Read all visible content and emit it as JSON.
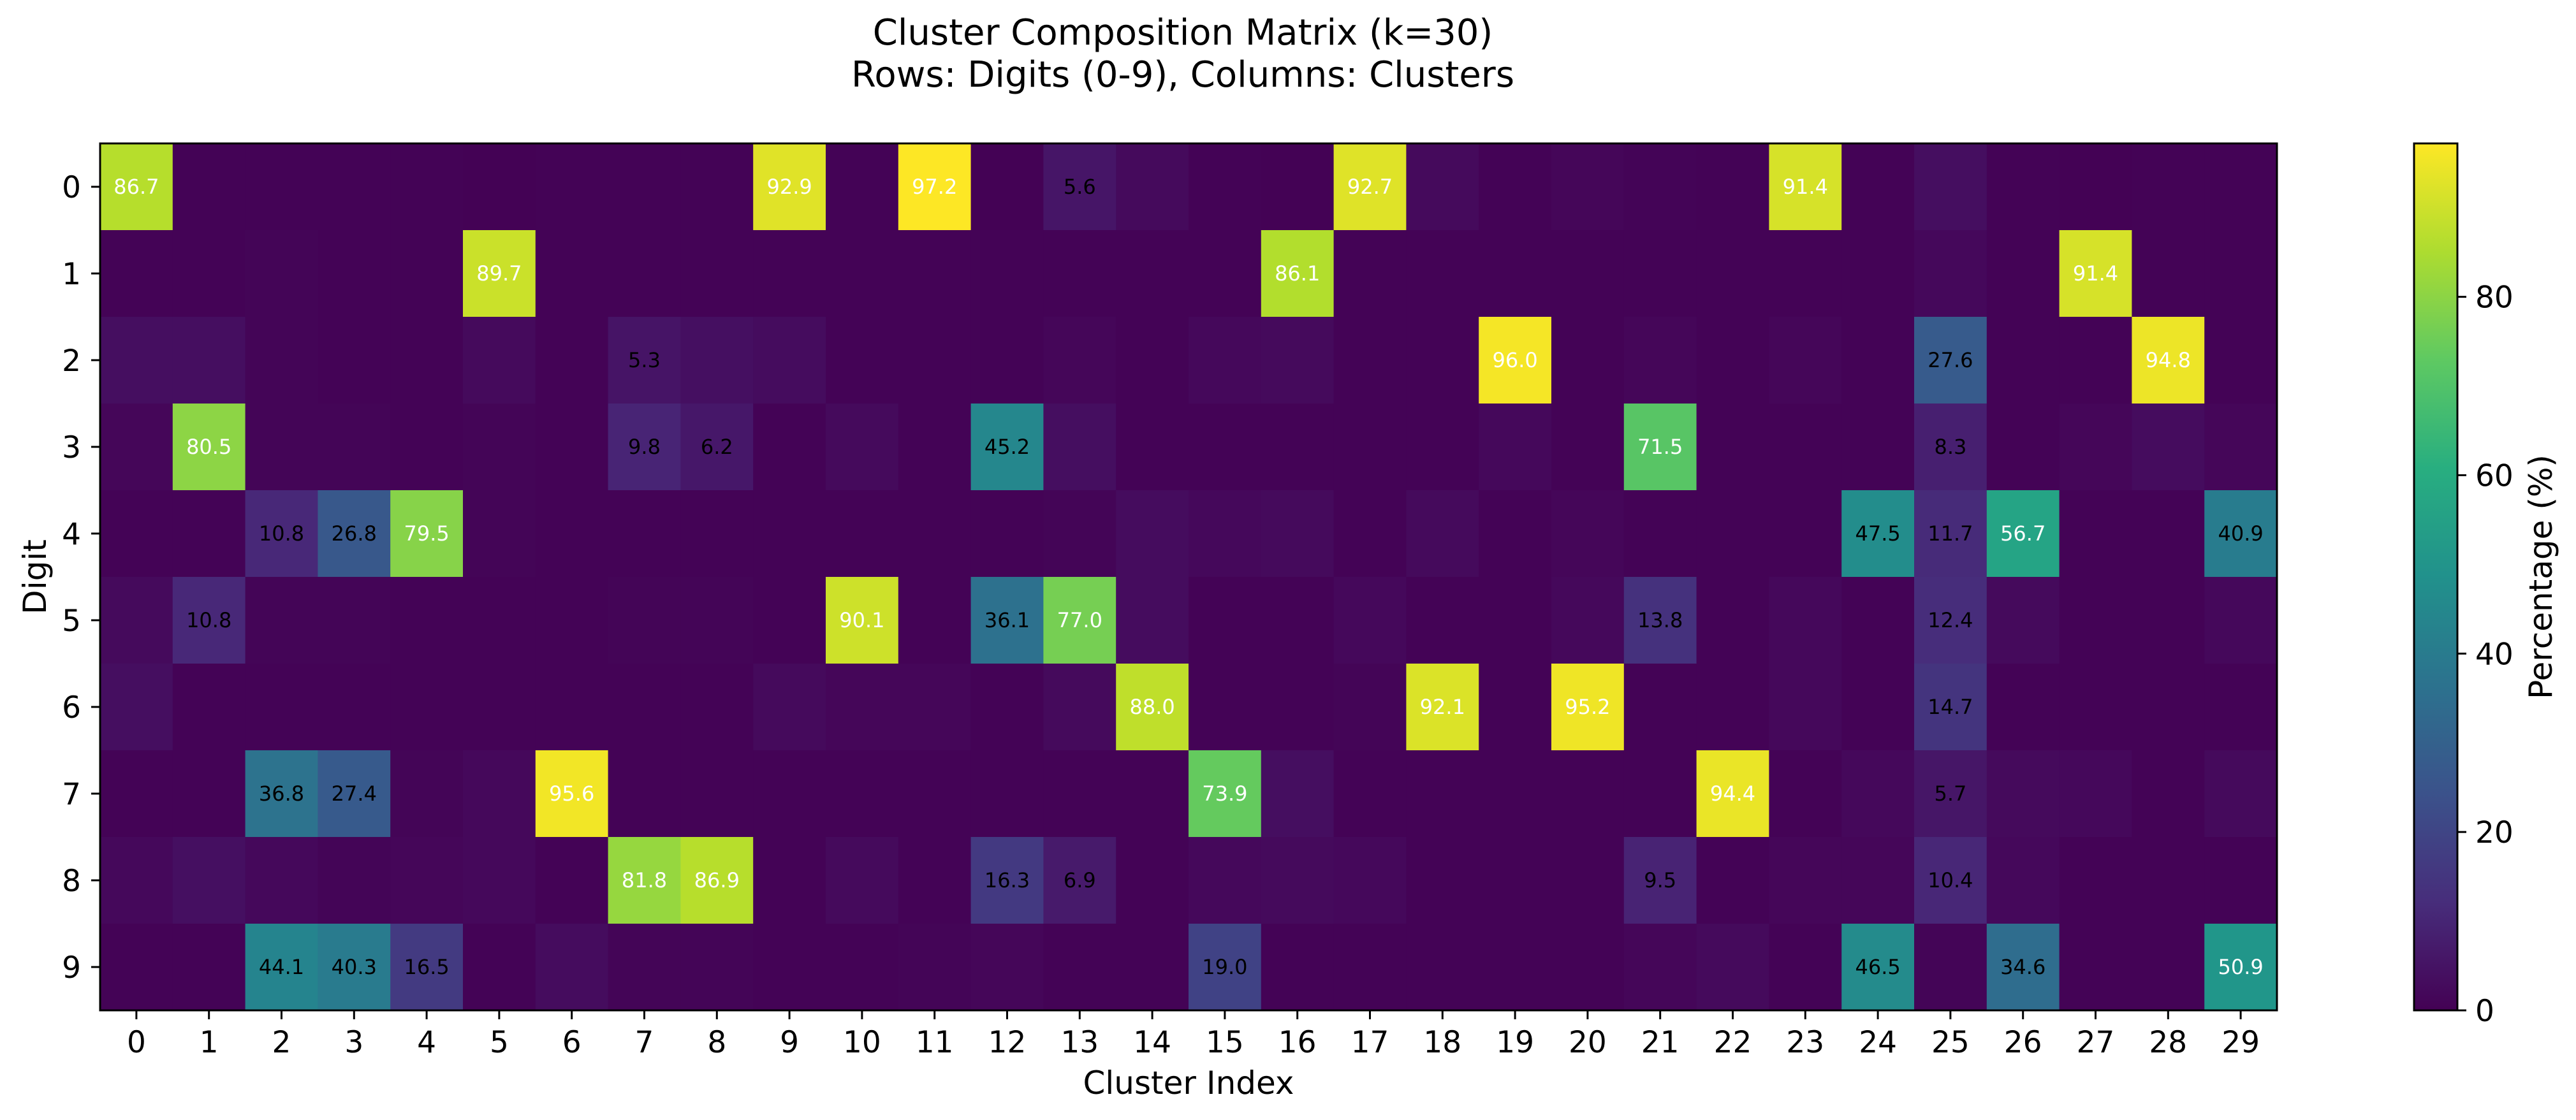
{
  "chart_data": {
    "type": "heatmap",
    "title_line1": "Cluster Composition Matrix (k=30)",
    "title_line2": "Rows: Digits (0-9), Columns: Clusters",
    "xlabel": "Cluster Index",
    "ylabel": "Digit",
    "colorbar_label": "Percentage (%)",
    "colormap": "viridis",
    "vmin": 0,
    "vmax": 97.2,
    "colorbar_ticks": [
      "0",
      "20",
      "40",
      "60",
      "80"
    ],
    "label_threshold": 5,
    "rows": [
      "0",
      "1",
      "2",
      "3",
      "4",
      "5",
      "6",
      "7",
      "8",
      "9"
    ],
    "columns": [
      "0",
      "1",
      "2",
      "3",
      "4",
      "5",
      "6",
      "7",
      "8",
      "9",
      "10",
      "11",
      "12",
      "13",
      "14",
      "15",
      "16",
      "17",
      "18",
      "19",
      "20",
      "21",
      "22",
      "23",
      "24",
      "25",
      "26",
      "27",
      "28",
      "29"
    ],
    "values": [
      [
        86.7,
        0.5,
        0.5,
        0.5,
        0.5,
        0.4,
        0.5,
        0.5,
        0.5,
        92.9,
        0.5,
        97.2,
        0.4,
        5.6,
        2.5,
        0.5,
        0.4,
        92.7,
        2.5,
        0.5,
        1.5,
        0.8,
        0.5,
        91.4,
        0.5,
        3.5,
        0.5,
        0.3,
        0.5,
        0.5
      ],
      [
        0.5,
        0.5,
        1.0,
        0.5,
        0.5,
        89.7,
        0.5,
        0.5,
        0.5,
        0.5,
        0.5,
        0.5,
        0.5,
        0.5,
        0.5,
        0.5,
        86.1,
        0.5,
        0.5,
        0.5,
        0.5,
        0.5,
        0.5,
        0.5,
        0.5,
        2.0,
        0.5,
        91.4,
        0.5,
        0.5
      ],
      [
        3.5,
        3.5,
        1.0,
        0.5,
        0.5,
        2.5,
        0.5,
        5.3,
        4.0,
        3.0,
        0.5,
        0.5,
        0.5,
        1.5,
        0.5,
        2.0,
        2.5,
        0.5,
        0.5,
        96.0,
        0.5,
        1.5,
        0.5,
        1.5,
        0.5,
        27.6,
        0.5,
        0.5,
        94.8,
        0.5
      ],
      [
        1.5,
        80.5,
        1.0,
        1.0,
        0.5,
        1.0,
        0.5,
        9.8,
        6.2,
        0.5,
        2.5,
        0.5,
        45.2,
        3.5,
        0.5,
        0.5,
        0.5,
        0.5,
        0.5,
        2.0,
        0.5,
        71.5,
        0.5,
        0.5,
        0.5,
        8.3,
        0.5,
        1.5,
        3.0,
        1.5
      ],
      [
        0.5,
        0.5,
        10.8,
        26.8,
        79.5,
        1.0,
        0.5,
        0.5,
        0.5,
        0.5,
        0.5,
        0.5,
        0.5,
        1.0,
        3.0,
        2.0,
        2.5,
        0.5,
        2.5,
        0.5,
        1.5,
        0.5,
        0.5,
        0.5,
        47.5,
        11.7,
        56.7,
        0.5,
        0.5,
        40.9
      ],
      [
        2.5,
        10.8,
        1.0,
        1.0,
        0.5,
        0.5,
        0.5,
        1.0,
        1.0,
        0.5,
        90.1,
        0.5,
        36.1,
        77.0,
        3.0,
        0.5,
        0.5,
        2.0,
        0.5,
        0.5,
        2.0,
        13.8,
        0.5,
        2.0,
        0.5,
        12.4,
        2.5,
        0.5,
        0.5,
        2.0
      ],
      [
        3.5,
        0.5,
        0.5,
        0.5,
        0.5,
        0.5,
        0.5,
        0.5,
        0.5,
        2.5,
        1.5,
        1.5,
        0.5,
        2.5,
        88.0,
        0.5,
        0.5,
        1.0,
        92.1,
        0.5,
        95.2,
        0.5,
        0.5,
        2.0,
        0.5,
        14.7,
        0.5,
        0.5,
        0.5,
        0.5
      ],
      [
        0.5,
        0.5,
        36.8,
        27.4,
        1.0,
        2.0,
        95.6,
        0.5,
        0.5,
        0.5,
        0.5,
        0.5,
        0.5,
        0.5,
        0.5,
        73.9,
        3.5,
        0.5,
        0.5,
        0.5,
        0.5,
        0.5,
        94.4,
        0.5,
        2.0,
        5.7,
        2.5,
        2.0,
        0.5,
        2.5
      ],
      [
        2.0,
        4.0,
        2.0,
        1.0,
        1.5,
        2.0,
        0.5,
        81.8,
        86.9,
        0.5,
        2.5,
        0.5,
        16.3,
        6.9,
        0.5,
        2.0,
        2.5,
        2.0,
        0.5,
        0.5,
        0.5,
        9.5,
        0.5,
        1.5,
        1.5,
        10.4,
        2.0,
        0.5,
        0.5,
        0.5
      ],
      [
        0.5,
        0.5,
        44.1,
        40.3,
        16.5,
        0.5,
        3.0,
        1.0,
        1.0,
        0.5,
        0.5,
        1.0,
        1.5,
        0.5,
        0.5,
        19.0,
        0.5,
        0.5,
        0.5,
        0.5,
        0.5,
        1.5,
        2.5,
        0.5,
        46.5,
        1.0,
        34.6,
        0.5,
        0.5,
        50.9
      ]
    ],
    "grid": false,
    "legend": "colorbar-right"
  }
}
